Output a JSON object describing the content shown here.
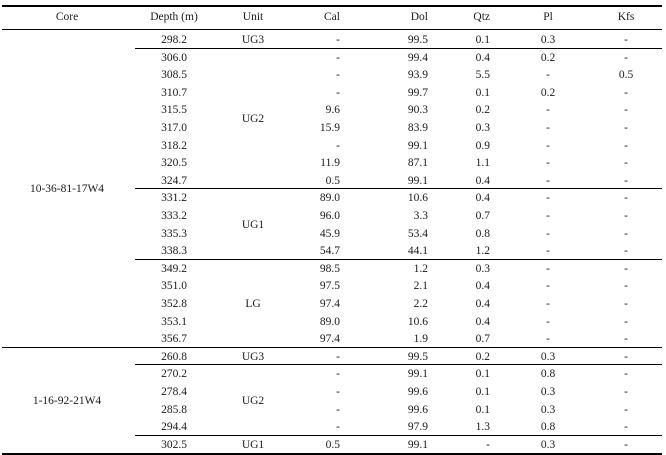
{
  "headers": {
    "core": "Core",
    "depth": "Depth (m)",
    "unit": "Unit",
    "cal": "Cal",
    "dol": "Dol",
    "qtz": "Qtz",
    "pl": "Pl",
    "kfs": "Kfs"
  },
  "groups": [
    {
      "core": "10-36-81-17W4",
      "units": [
        {
          "unit": "UG3",
          "rows": [
            {
              "depth": "298.2",
              "cal": "-",
              "dol": "99.5",
              "qtz": "0.1",
              "pl": "0.3",
              "kfs": "-"
            }
          ]
        },
        {
          "unit": "UG2",
          "rows": [
            {
              "depth": "306.0",
              "cal": "-",
              "dol": "99.4",
              "qtz": "0.4",
              "pl": "0.2",
              "kfs": "-"
            },
            {
              "depth": "308.5",
              "cal": "-",
              "dol": "93.9",
              "qtz": "5.5",
              "pl": "-",
              "kfs": "0.5"
            },
            {
              "depth": "310.7",
              "cal": "-",
              "dol": "99.7",
              "qtz": "0.1",
              "pl": "0.2",
              "kfs": "-"
            },
            {
              "depth": "315.5",
              "cal": "9.6",
              "dol": "90.3",
              "qtz": "0.2",
              "pl": "-",
              "kfs": "-"
            },
            {
              "depth": "317.0",
              "cal": "15.9",
              "dol": "83.9",
              "qtz": "0.3",
              "pl": "-",
              "kfs": "-"
            },
            {
              "depth": "318.2",
              "cal": "-",
              "dol": "99.1",
              "qtz": "0.9",
              "pl": "-",
              "kfs": "-"
            },
            {
              "depth": "320.5",
              "cal": "11.9",
              "dol": "87.1",
              "qtz": "1.1",
              "pl": "-",
              "kfs": "-"
            },
            {
              "depth": "324.7",
              "cal": "0.5",
              "dol": "99.1",
              "qtz": "0.4",
              "pl": "-",
              "kfs": "-"
            }
          ]
        },
        {
          "unit": "UG1",
          "rows": [
            {
              "depth": "331.2",
              "cal": "89.0",
              "dol": "10.6",
              "qtz": "0.4",
              "pl": "-",
              "kfs": "-"
            },
            {
              "depth": "333.2",
              "cal": "96.0",
              "dol": "3.3",
              "qtz": "0.7",
              "pl": "-",
              "kfs": "-"
            },
            {
              "depth": "335.3",
              "cal": "45.9",
              "dol": "53.4",
              "qtz": "0.8",
              "pl": "-",
              "kfs": "-"
            },
            {
              "depth": "338.3",
              "cal": "54.7",
              "dol": "44.1",
              "qtz": "1.2",
              "pl": "-",
              "kfs": "-"
            }
          ]
        },
        {
          "unit": "LG",
          "rows": [
            {
              "depth": "349.2",
              "cal": "98.5",
              "dol": "1.2",
              "qtz": "0.3",
              "pl": "-",
              "kfs": "-"
            },
            {
              "depth": "351.0",
              "cal": "97.5",
              "dol": "2.1",
              "qtz": "0.4",
              "pl": "-",
              "kfs": "-"
            },
            {
              "depth": "352.8",
              "cal": "97.4",
              "dol": "2.2",
              "qtz": "0.4",
              "pl": "-",
              "kfs": "-"
            },
            {
              "depth": "353.1",
              "cal": "89.0",
              "dol": "10.6",
              "qtz": "0.4",
              "pl": "-",
              "kfs": "-"
            },
            {
              "depth": "356.7",
              "cal": "97.4",
              "dol": "1.9",
              "qtz": "0.7",
              "pl": "-",
              "kfs": "-"
            }
          ]
        }
      ]
    },
    {
      "core": "1-16-92-21W4",
      "units": [
        {
          "unit": "UG3",
          "rows": [
            {
              "depth": "260.8",
              "cal": "-",
              "dol": "99.5",
              "qtz": "0.2",
              "pl": "0.3",
              "kfs": "-"
            }
          ]
        },
        {
          "unit": "UG2",
          "rows": [
            {
              "depth": "270.2",
              "cal": "-",
              "dol": "99.1",
              "qtz": "0.1",
              "pl": "0.8",
              "kfs": "-"
            },
            {
              "depth": "278.4",
              "cal": "-",
              "dol": "99.6",
              "qtz": "0.1",
              "pl": "0.3",
              "kfs": "-"
            },
            {
              "depth": "285.8",
              "cal": "-",
              "dol": "99.6",
              "qtz": "0.1",
              "pl": "0.3",
              "kfs": "-"
            },
            {
              "depth": "294.4",
              "cal": "-",
              "dol": "97.9",
              "qtz": "1.3",
              "pl": "0.8",
              "kfs": "-"
            }
          ]
        },
        {
          "unit": "UG1",
          "rows": [
            {
              "depth": "302.5",
              "cal": "0.5",
              "dol": "99.1",
              "qtz": "-",
              "pl": "0.3",
              "kfs": "-"
            }
          ]
        }
      ]
    }
  ]
}
